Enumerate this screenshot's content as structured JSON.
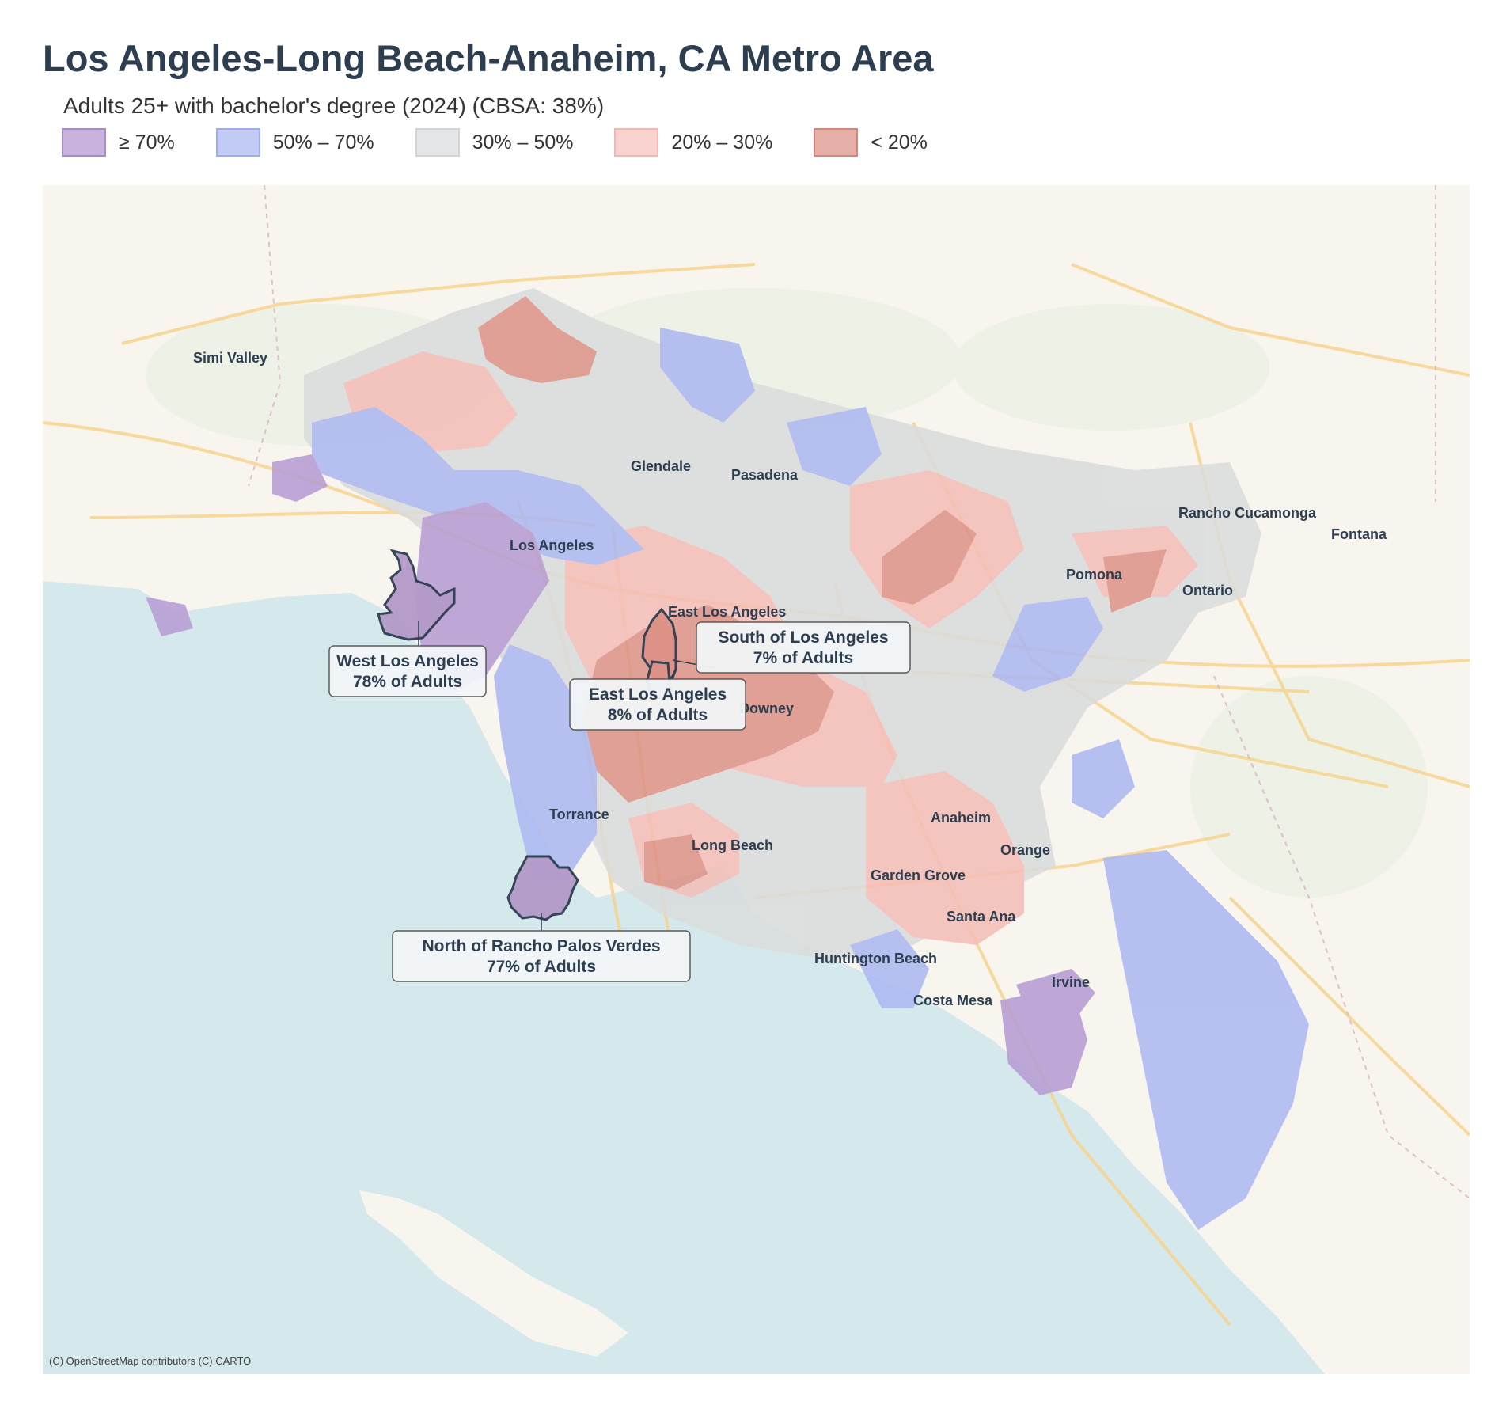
{
  "title": "Los Angeles-Long Beach-Anaheim, CA Metro Area",
  "subtitle": "Adults 25+ with bachelor's degree (2024)  (CBSA: 38%)",
  "legend": [
    {
      "label": "≥ 70%",
      "fill": "#b9a3d3",
      "stroke": "#9b80c0"
    },
    {
      "label": "50% – 70%",
      "fill": "#b4bff2",
      "stroke": "#8f9fe8"
    },
    {
      "label": "30% – 50%",
      "fill": "#dcdfe0",
      "stroke": "#c8cbcc"
    },
    {
      "label": "20% – 30%",
      "fill": "#f6c8c3",
      "stroke": "#eeaaa3"
    },
    {
      "label": "< 20%",
      "fill": "#e0a49b",
      "stroke": "#cf7d71"
    }
  ],
  "places": [
    "Simi Valley",
    "Glendale",
    "Pasadena",
    "Los Angeles",
    "Rancho Cucamonga",
    "Fontana",
    "Pomona",
    "Ontario",
    "East Los Angeles",
    "Downey",
    "Torrance",
    "Long Beach",
    "Anaheim",
    "Orange",
    "Garden Grove",
    "Santa Ana",
    "Huntington Beach",
    "Irvine",
    "Costa Mesa"
  ],
  "callouts": [
    {
      "name": "West Los Angeles",
      "value": "78% of Adults"
    },
    {
      "name": "South of Los Angeles",
      "value": "7% of Adults"
    },
    {
      "name": "East Los Angeles",
      "value": "8% of Adults"
    },
    {
      "name": "North of Rancho Palos Verdes",
      "value": "77% of Adults"
    }
  ],
  "attribution": "(C) OpenStreetMap contributors (C) CARTO",
  "colors": {
    "ocean": "#d5e8ec",
    "land": "#f8f5ef",
    "road": "#f7d48f",
    "text": "#2c3e50"
  }
}
